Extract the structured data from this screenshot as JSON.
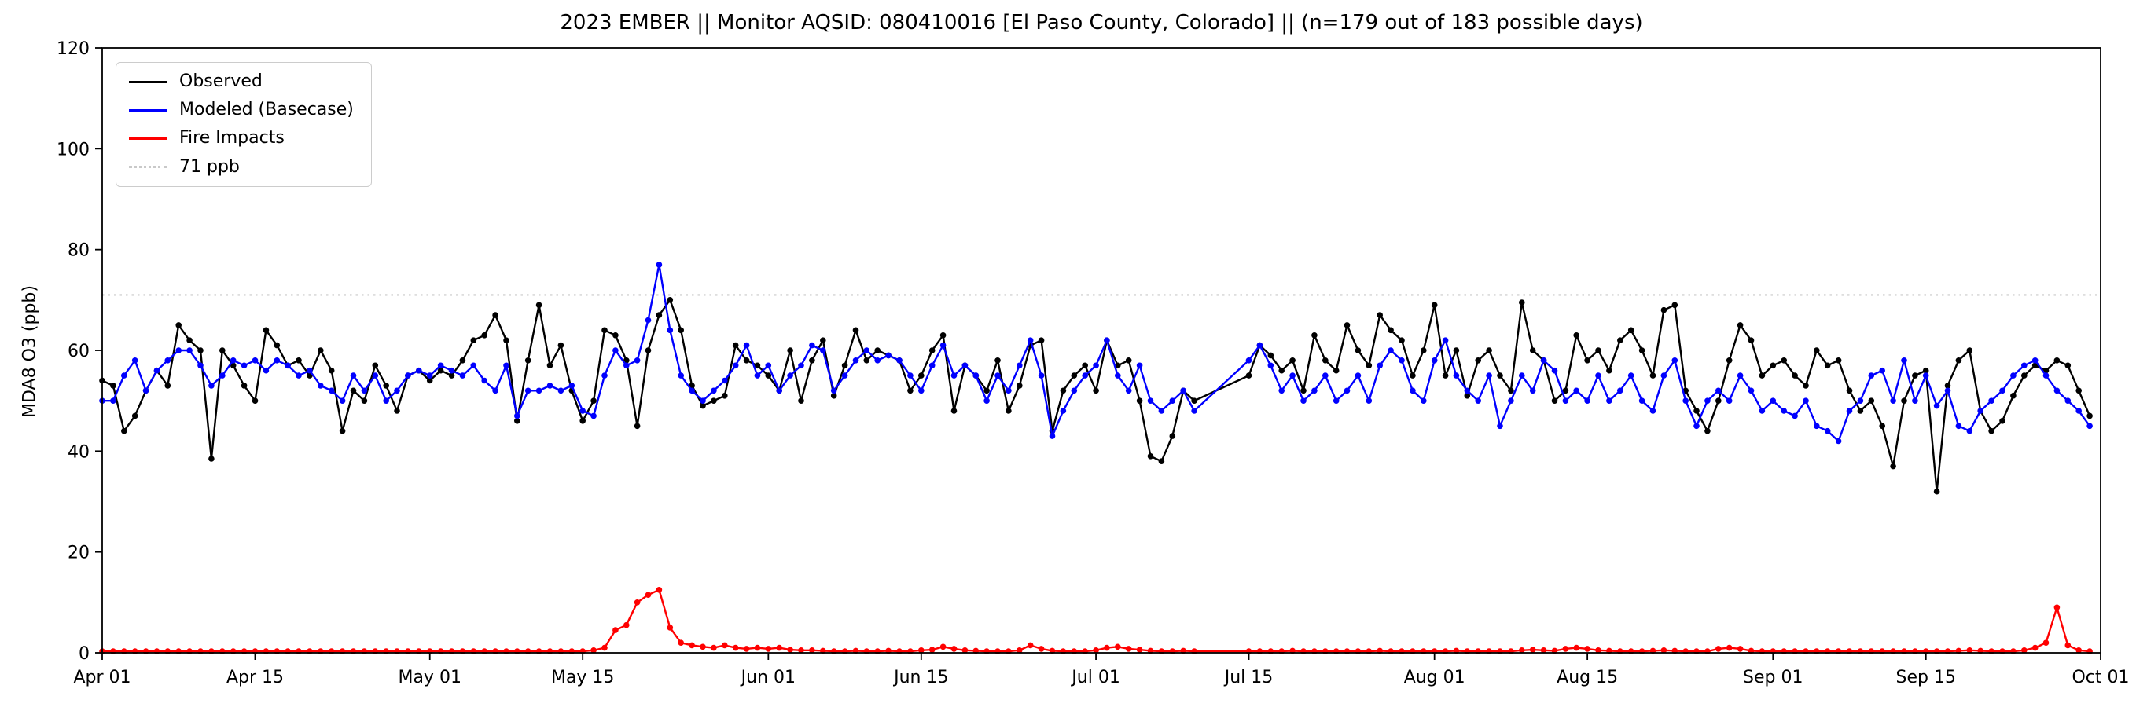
{
  "chart_data": {
    "type": "line",
    "title": "2023 EMBER || Monitor AQSID: 080410016 [El Paso County, Colorado] || (n=179 out of 183 possible days)",
    "ylabel": "MDA8 O3 (ppb)",
    "xlabel": "",
    "ylim": [
      0,
      120
    ],
    "y_ticks": [
      0,
      20,
      40,
      60,
      80,
      100,
      120
    ],
    "x_domain_days": [
      0,
      183
    ],
    "x_ticks": [
      {
        "day": 0,
        "label": "Apr 01"
      },
      {
        "day": 14,
        "label": "Apr 15"
      },
      {
        "day": 30,
        "label": "May 01"
      },
      {
        "day": 44,
        "label": "May 15"
      },
      {
        "day": 61,
        "label": "Jun 01"
      },
      {
        "day": 75,
        "label": "Jun 15"
      },
      {
        "day": 91,
        "label": "Jul 01"
      },
      {
        "day": 105,
        "label": "Jul 15"
      },
      {
        "day": 122,
        "label": "Aug 01"
      },
      {
        "day": 136,
        "label": "Aug 15"
      },
      {
        "day": 153,
        "label": "Sep 01"
      },
      {
        "day": 167,
        "label": "Sep 15"
      },
      {
        "day": 183,
        "label": "Oct 01"
      }
    ],
    "grid": false,
    "legend_position": "upper left",
    "legend": [
      "Observed",
      "Modeled (Basecase)",
      "Fire Impacts",
      "71 ppb"
    ],
    "threshold": {
      "value": 71,
      "label": "71 ppb",
      "color": "#c9c9c9",
      "style": "dotted"
    },
    "series": [
      {
        "name": "Observed",
        "color": "#000000",
        "marker": "circle",
        "values": [
          54,
          53,
          44,
          47,
          52,
          56,
          53,
          65,
          62,
          60,
          38.5,
          60,
          57,
          53,
          50,
          64,
          61,
          57,
          58,
          55,
          60,
          56,
          44,
          52,
          50,
          57,
          53,
          48,
          55,
          56,
          54,
          56,
          55,
          58,
          62,
          63,
          67,
          62,
          46,
          58,
          69,
          57,
          61,
          52,
          46,
          50,
          64,
          63,
          58,
          45,
          60,
          67,
          70,
          64,
          53,
          49,
          50,
          51,
          61,
          58,
          57,
          55,
          52,
          60,
          50,
          58,
          62,
          51,
          57,
          64,
          58,
          60,
          59,
          58,
          52,
          55,
          60,
          63,
          48,
          57,
          55,
          52,
          58,
          48,
          53,
          61,
          62,
          44,
          52,
          55,
          57,
          52,
          62,
          57,
          58,
          50,
          39,
          38,
          43,
          52,
          50,
          null,
          null,
          null,
          null,
          55,
          61,
          59,
          56,
          58,
          52,
          63,
          58,
          56,
          65,
          60,
          57,
          67,
          64,
          62,
          55,
          60,
          69,
          55,
          60,
          51,
          58,
          60,
          55,
          52,
          69.5,
          60,
          58,
          50,
          52,
          63,
          58,
          60,
          56,
          62,
          64,
          60,
          55,
          68,
          69,
          52,
          48,
          44,
          50,
          58,
          65,
          62,
          55,
          57,
          58,
          55,
          53,
          60,
          57,
          58,
          52,
          48,
          50,
          45,
          37,
          50,
          55,
          56,
          32,
          53,
          58,
          60,
          48,
          44,
          46,
          51,
          55,
          57,
          56,
          58,
          57,
          52,
          47
        ]
      },
      {
        "name": "Modeled (Basecase)",
        "color": "#0000ff",
        "marker": "circle",
        "values": [
          50,
          50,
          55,
          58,
          52,
          56,
          58,
          60,
          60,
          57,
          53,
          55,
          58,
          57,
          58,
          56,
          58,
          57,
          55,
          56,
          53,
          52,
          50,
          55,
          52,
          55,
          50,
          52,
          55,
          56,
          55,
          57,
          56,
          55,
          57,
          54,
          52,
          57,
          47,
          52,
          52,
          53,
          52,
          53,
          48,
          47,
          55,
          60,
          57,
          58,
          66,
          77,
          64,
          55,
          52,
          50,
          52,
          54,
          57,
          61,
          55,
          57,
          52,
          55,
          57,
          61,
          60,
          52,
          55,
          58,
          60,
          58,
          59,
          58,
          55,
          52,
          57,
          61,
          55,
          57,
          55,
          50,
          55,
          52,
          57,
          62,
          55,
          43,
          48,
          52,
          55,
          57,
          62,
          55,
          52,
          57,
          50,
          48,
          50,
          52,
          48,
          null,
          null,
          null,
          null,
          58,
          61,
          57,
          52,
          55,
          50,
          52,
          55,
          50,
          52,
          55,
          50,
          57,
          60,
          58,
          52,
          50,
          58,
          62,
          55,
          52,
          50,
          55,
          45,
          50,
          55,
          52,
          58,
          56,
          50,
          52,
          50,
          55,
          50,
          52,
          55,
          50,
          48,
          55,
          58,
          50,
          45,
          50,
          52,
          50,
          55,
          52,
          48,
          50,
          48,
          47,
          50,
          45,
          44,
          42,
          48,
          50,
          55,
          56,
          50,
          58,
          50,
          55,
          49,
          52,
          45,
          44,
          48,
          50,
          52,
          55,
          57,
          58,
          55,
          52,
          50,
          48,
          45
        ]
      },
      {
        "name": "Fire Impacts",
        "color": "#ff0000",
        "marker": "circle",
        "values": [
          0.3,
          0.3,
          0.3,
          0.3,
          0.3,
          0.3,
          0.3,
          0.3,
          0.3,
          0.3,
          0.3,
          0.3,
          0.3,
          0.3,
          0.3,
          0.3,
          0.3,
          0.3,
          0.3,
          0.3,
          0.3,
          0.3,
          0.3,
          0.3,
          0.3,
          0.3,
          0.3,
          0.3,
          0.3,
          0.3,
          0.3,
          0.3,
          0.3,
          0.3,
          0.3,
          0.3,
          0.3,
          0.3,
          0.3,
          0.3,
          0.3,
          0.3,
          0.3,
          0.3,
          0.3,
          0.5,
          1,
          4.5,
          5.5,
          10,
          11.5,
          12.5,
          5,
          2,
          1.5,
          1.2,
          1,
          1.5,
          1,
          0.8,
          1,
          0.8,
          1,
          0.6,
          0.5,
          0.5,
          0.4,
          0.3,
          0.3,
          0.4,
          0.3,
          0.3,
          0.4,
          0.3,
          0.3,
          0.5,
          0.6,
          1.2,
          0.8,
          0.5,
          0.4,
          0.3,
          0.3,
          0.3,
          0.5,
          1.5,
          0.8,
          0.4,
          0.3,
          0.3,
          0.3,
          0.5,
          1,
          1.2,
          0.8,
          0.6,
          0.4,
          0.3,
          0.3,
          0.4,
          0.3,
          null,
          null,
          null,
          null,
          0.3,
          0.3,
          0.3,
          0.3,
          0.4,
          0.3,
          0.3,
          0.3,
          0.3,
          0.3,
          0.3,
          0.3,
          0.4,
          0.3,
          0.3,
          0.3,
          0.3,
          0.3,
          0.3,
          0.4,
          0.3,
          0.3,
          0.3,
          0.3,
          0.3,
          0.5,
          0.6,
          0.5,
          0.4,
          0.8,
          1,
          0.8,
          0.5,
          0.4,
          0.3,
          0.3,
          0.3,
          0.4,
          0.5,
          0.4,
          0.3,
          0.3,
          0.3,
          0.8,
          1,
          0.8,
          0.4,
          0.3,
          0.3,
          0.3,
          0.3,
          0.3,
          0.3,
          0.3,
          0.3,
          0.3,
          0.3,
          0.3,
          0.3,
          0.3,
          0.3,
          0.3,
          0.3,
          0.3,
          0.3,
          0.4,
          0.5,
          0.4,
          0.3,
          0.3,
          0.3,
          0.5,
          1,
          2,
          9,
          1.5,
          0.5,
          0.3
        ]
      }
    ]
  }
}
